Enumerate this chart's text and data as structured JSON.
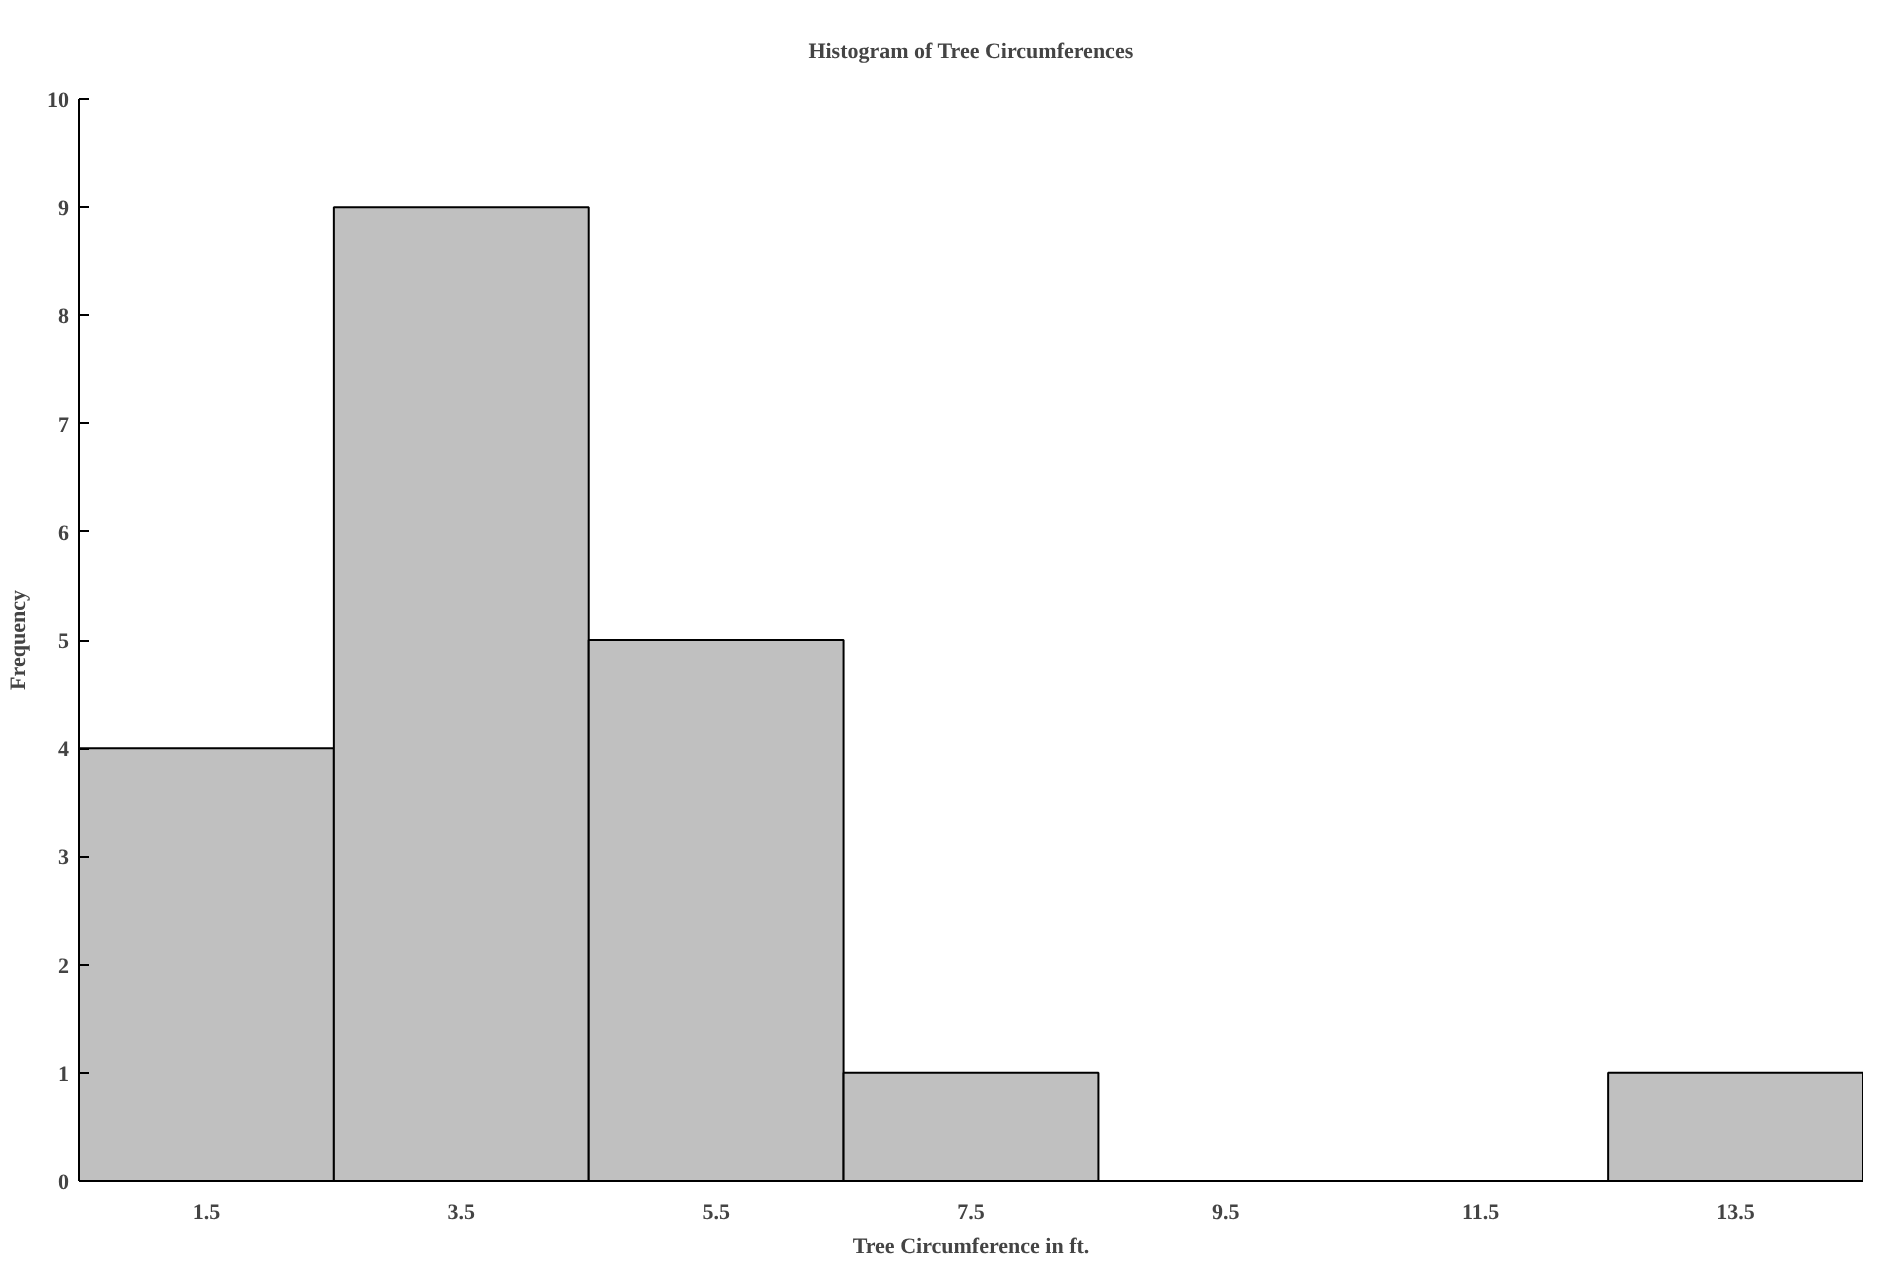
{
  "chart_data": {
    "type": "histogram",
    "title": "Histogram of Tree Circumferences",
    "xlabel": "Tree Circumference in ft.",
    "ylabel": "Frequency",
    "bins": [
      0.5,
      2.5,
      4.5,
      6.5,
      8.5,
      10.5,
      12.5,
      14.5
    ],
    "values": [
      4,
      9,
      5,
      1,
      0,
      0,
      1
    ],
    "color": "#c0c0c0",
    "xlim": [
      0.5,
      14.5
    ],
    "xticks": [
      1.5,
      3.5,
      5.5,
      7.5,
      9.5,
      11.5,
      13.5
    ],
    "ylim": [
      0,
      10
    ],
    "yticks": [
      0,
      1,
      2,
      3,
      4,
      5,
      6,
      7,
      8,
      9,
      10
    ],
    "grid": false,
    "legend": false
  }
}
